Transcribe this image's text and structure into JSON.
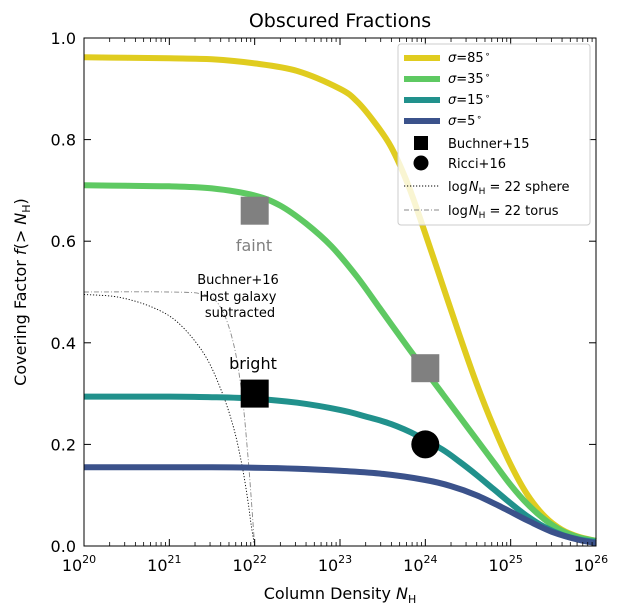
{
  "chart_data": {
    "type": "line",
    "title": "Obscured Fractions",
    "xlabel_main": "Column Density ",
    "xlabel_sym": "N",
    "xlabel_sub": "H",
    "ylabel_main": "Covering Factor ",
    "ylabel_f": "f",
    "ylabel_mid": "(> ",
    "ylabel_sym": "N",
    "ylabel_sub": "H",
    "ylabel_end": ")",
    "x_scale": "log",
    "xlim": [
      1e+20,
      1e+26
    ],
    "ylim": [
      0,
      1.0
    ],
    "grid": false,
    "legend_position": "top-right",
    "x_ticks": [
      {
        "base": "10",
        "exp": "20",
        "logv": 20
      },
      {
        "base": "10",
        "exp": "21",
        "logv": 21
      },
      {
        "base": "10",
        "exp": "22",
        "logv": 22
      },
      {
        "base": "10",
        "exp": "23",
        "logv": 23
      },
      {
        "base": "10",
        "exp": "24",
        "logv": 24
      },
      {
        "base": "10",
        "exp": "25",
        "logv": 25
      },
      {
        "base": "10",
        "exp": "26",
        "logv": 26
      }
    ],
    "y_ticks": [
      {
        "v": 0.0,
        "label": "0.0"
      },
      {
        "v": 0.2,
        "label": "0.2"
      },
      {
        "v": 0.4,
        "label": "0.4"
      },
      {
        "v": 0.6,
        "label": "0.6"
      },
      {
        "v": 0.8,
        "label": "0.8"
      },
      {
        "v": 1.0,
        "label": "1.0"
      }
    ],
    "series": [
      {
        "name": "σ=85°",
        "legend_sym": "σ",
        "legend_val": "=85",
        "color": "#e0cc1f",
        "x_log": [
          20,
          20.5,
          21,
          21.5,
          22,
          22.5,
          23,
          23.2,
          23.4,
          23.6,
          23.8,
          24,
          24.2,
          24.4,
          24.6,
          24.8,
          25,
          25.2,
          25.4,
          25.6,
          25.8,
          26
        ],
        "y": [
          0.962,
          0.961,
          0.96,
          0.958,
          0.95,
          0.935,
          0.9,
          0.875,
          0.835,
          0.785,
          0.71,
          0.615,
          0.515,
          0.415,
          0.32,
          0.235,
          0.16,
          0.1,
          0.058,
          0.032,
          0.018,
          0.01
        ]
      },
      {
        "name": "σ=35°",
        "legend_sym": "σ",
        "legend_val": "=35",
        "color": "#5ec962",
        "x_log": [
          20,
          20.5,
          21,
          21.5,
          22,
          22.3,
          22.6,
          22.9,
          23.2,
          23.5,
          23.8,
          24,
          24.2,
          24.4,
          24.6,
          24.8,
          25,
          25.2,
          25.4,
          25.6,
          25.8,
          26
        ],
        "y": [
          0.71,
          0.709,
          0.708,
          0.704,
          0.69,
          0.67,
          0.635,
          0.59,
          0.53,
          0.46,
          0.39,
          0.345,
          0.3,
          0.255,
          0.21,
          0.165,
          0.12,
          0.082,
          0.052,
          0.03,
          0.017,
          0.01
        ]
      },
      {
        "name": "σ=15°",
        "legend_sym": "σ",
        "legend_val": "=15",
        "color": "#21918c",
        "x_log": [
          20,
          20.5,
          21,
          21.5,
          22,
          22.5,
          23,
          23.3,
          23.6,
          23.9,
          24.2,
          24.4,
          24.6,
          24.8,
          25,
          25.2,
          25.4,
          25.6,
          25.8,
          26
        ],
        "y": [
          0.294,
          0.294,
          0.294,
          0.293,
          0.29,
          0.282,
          0.268,
          0.255,
          0.24,
          0.218,
          0.19,
          0.166,
          0.14,
          0.112,
          0.084,
          0.058,
          0.037,
          0.022,
          0.013,
          0.008
        ]
      },
      {
        "name": "σ=5°",
        "legend_sym": "σ",
        "legend_val": "=5",
        "color": "#3b528b",
        "x_log": [
          20,
          20.5,
          21,
          21.5,
          22,
          22.5,
          23,
          23.5,
          24,
          24.3,
          24.6,
          24.9,
          25.2,
          25.5,
          25.8,
          26
        ],
        "y": [
          0.155,
          0.155,
          0.155,
          0.155,
          0.154,
          0.152,
          0.148,
          0.142,
          0.13,
          0.118,
          0.1,
          0.076,
          0.05,
          0.027,
          0.012,
          0.006
        ]
      }
    ],
    "reference_curves": [
      {
        "name": "logNH = 22 sphere",
        "legend_pre": "log",
        "legend_post": " = 22 sphere",
        "dash": "1.2,1.8",
        "x_log": [
          20,
          20.4,
          20.8,
          21.1,
          21.4,
          21.6,
          21.75,
          21.85,
          21.92,
          21.96,
          22
        ],
        "y": [
          0.495,
          0.49,
          0.47,
          0.44,
          0.38,
          0.31,
          0.235,
          0.16,
          0.09,
          0.04,
          0.0
        ]
      },
      {
        "name": "logNH = 22 torus",
        "legend_pre": "log",
        "legend_post": " = 22 torus",
        "dash": "5,2,1,2",
        "x_log": [
          20,
          21,
          21.4,
          21.6,
          21.75,
          21.85,
          21.92,
          21.97,
          22
        ],
        "y": [
          0.5,
          0.5,
          0.495,
          0.47,
          0.4,
          0.3,
          0.18,
          0.07,
          0.0
        ]
      }
    ],
    "observations": [
      {
        "name": "Buchner+15",
        "marker": "square",
        "points": [
          {
            "x_log": 22.0,
            "y": 0.66,
            "color": "#808080",
            "label": "faint"
          },
          {
            "x_log": 24.0,
            "y": 0.35,
            "color": "#808080",
            "label": ""
          },
          {
            "x_log": 22.0,
            "y": 0.3,
            "color": "#000000",
            "label": "bright"
          }
        ]
      },
      {
        "name": "Ricci+16",
        "marker": "circle",
        "points": [
          {
            "x_log": 24.0,
            "y": 0.2,
            "color": "#000000",
            "label": ""
          }
        ]
      }
    ],
    "annotations": {
      "host_line1": "Buchner+16",
      "host_line2": "Host galaxy",
      "host_line3": "subtracted",
      "faint_label": "faint",
      "bright_label": "bright"
    }
  }
}
